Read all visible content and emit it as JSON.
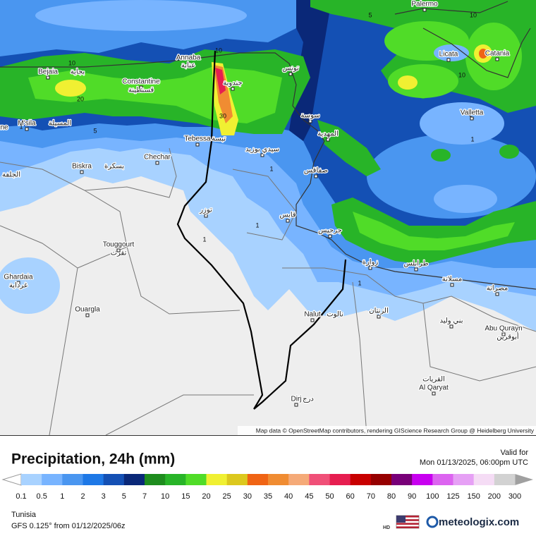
{
  "map": {
    "attribution": "Map data © OpenStreetMap contributors, rendering GIScience Research Group @ Heidelberg University",
    "places": [
      "Palermo",
      "Catania",
      "Licata",
      "Valletta",
      "Annaba",
      "عنابة",
      "Bejaia",
      "بجاية",
      "Constantine",
      "قسنطينة",
      "M'sila",
      "المسيلة",
      "Tebessa",
      "تبسة",
      "Biskra",
      "بسكرة",
      "Chechar",
      "Touggourt",
      "تقرت",
      "Ghardaia",
      "غرداية",
      "Ouargla",
      "تونس",
      "سوسة",
      "المهدية",
      "صفاقس",
      "قابس",
      "جرجيس",
      "جندوبة",
      "سيدي بوزيد",
      "توزر",
      "زوارة",
      "طرابلس",
      "مسلاتة",
      "مصراتة",
      "Nalut",
      "نالوت",
      "الزنتان",
      "بني وليد",
      "Abu Qurayn",
      "أبوقرين",
      "Al Qaryat",
      "القريات",
      "Dirj",
      "درج",
      "الجلفة",
      "ne"
    ],
    "contour_labels": [
      "10",
      "20",
      "30",
      "10",
      "5",
      "1",
      "1",
      "10",
      "10",
      "1",
      "1",
      "1",
      "1",
      "5"
    ]
  },
  "header": {
    "title": "Precipitation, 24h (mm)",
    "valid_label": "Valid for",
    "valid_time": "Mon 01/13/2025, 06:00pm UTC"
  },
  "legend": {
    "labels": [
      "0.1",
      "0.5",
      "1",
      "2",
      "3",
      "5",
      "7",
      "10",
      "15",
      "20",
      "25",
      "30",
      "35",
      "40",
      "45",
      "50",
      "60",
      "70",
      "80",
      "90",
      "100",
      "125",
      "150",
      "200",
      "300"
    ],
    "colors": [
      "#a8d2ff",
      "#78b4ff",
      "#4a96f0",
      "#1e78e6",
      "#1450b4",
      "#0a2878",
      "#1e8c1e",
      "#28b428",
      "#50dc28",
      "#f0f032",
      "#dcc81e",
      "#f06414",
      "#f08c32",
      "#f5aa78",
      "#f05078",
      "#e61e50",
      "#c80000",
      "#960000",
      "#780078",
      "#c800f0",
      "#dc64f0",
      "#e6a0f5",
      "#f5dcf5",
      "#d2d2d2"
    ]
  },
  "footer": {
    "region": "Tunisia",
    "model": "GFS 0.125° from  01/12/2025/06z",
    "hd": "HD",
    "brand": "meteologix.com"
  }
}
